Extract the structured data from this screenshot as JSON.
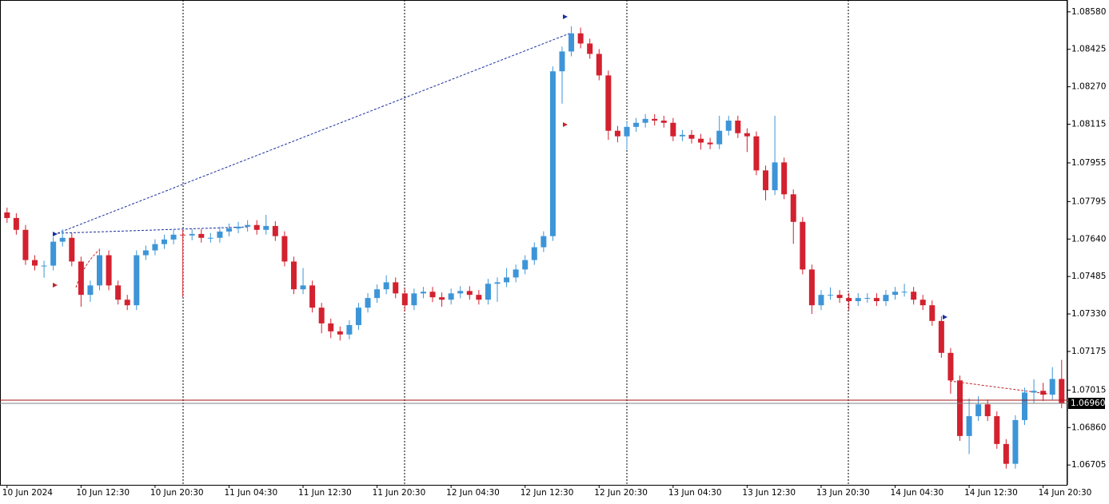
{
  "chart_data": {
    "type": "candlestick",
    "categories": [
      "10 Jun 2024",
      null,
      null,
      null,
      null,
      null,
      null,
      null,
      "10 Jun 12:30",
      null,
      null,
      null,
      null,
      null,
      null,
      null,
      "10 Jun 20:30",
      null,
      null,
      null,
      null,
      null,
      null,
      null,
      "11 Jun 04:30",
      null,
      null,
      null,
      null,
      null,
      null,
      null,
      "11 Jun 12:30",
      null,
      null,
      null,
      null,
      null,
      null,
      null,
      "11 Jun 20:30",
      null,
      null,
      null,
      null,
      null,
      null,
      null,
      "12 Jun 04:30",
      null,
      null,
      null,
      null,
      null,
      null,
      null,
      "12 Jun 12:30",
      null,
      null,
      null,
      null,
      null,
      null,
      null,
      "12 Jun 20:30",
      null,
      null,
      null,
      null,
      null,
      null,
      null,
      "13 Jun 04:30",
      null,
      null,
      null,
      null,
      null,
      null,
      null,
      "13 Jun 12:30",
      null,
      null,
      null,
      null,
      null,
      null,
      null,
      "13 Jun 20:30",
      null,
      null,
      null,
      null,
      null,
      null,
      null,
      "14 Jun 04:30",
      null,
      null,
      null,
      null,
      null,
      null,
      null,
      "14 Jun 12:30",
      null,
      null,
      null,
      null,
      null,
      null,
      null,
      "14 Jun 20:30",
      null,
      null
    ],
    "open": [
      1.0775,
      1.07727,
      1.07678,
      1.07553,
      1.0753,
      1.0753,
      1.07629,
      1.07645,
      1.07547,
      1.07409,
      1.07448,
      1.07573,
      1.07448,
      1.07389,
      1.07366,
      1.07573,
      1.07593,
      1.07619,
      1.07638,
      1.07658,
      1.07655,
      1.07661,
      1.07645,
      1.07645,
      1.07671,
      1.07684,
      1.07691,
      1.07698,
      1.07678,
      1.07694,
      1.07652,
      1.07547,
      1.07432,
      1.07448,
      1.07356,
      1.07291,
      1.07258,
      1.07245,
      1.07284,
      1.07356,
      1.07396,
      1.07432,
      1.07461,
      1.07415,
      1.07366,
      1.07415,
      1.07422,
      1.07399,
      1.07389,
      1.07415,
      1.07425,
      1.07409,
      1.07389,
      1.07455,
      1.07461,
      1.07481,
      1.07514,
      1.07553,
      1.07606,
      1.07652,
      1.08334,
      1.08416,
      1.08491,
      1.08449,
      1.08406,
      1.08317,
      1.08088,
      1.08065,
      1.08104,
      1.08121,
      1.08137,
      1.0813,
      1.08121,
      1.08065,
      1.08071,
      1.08055,
      1.08039,
      1.08032,
      1.08088,
      1.0813,
      1.08078,
      1.08065,
      1.07924,
      1.07842,
      1.07957,
      1.07825,
      1.07711,
      1.07514,
      1.07366,
      1.07409,
      1.07409,
      1.07396,
      1.07383,
      1.07396,
      1.07396,
      1.07383,
      1.07409,
      1.07422,
      1.07422,
      1.07389,
      1.07366,
      1.07301,
      1.07169,
      1.07055,
      1.06825,
      1.06907,
      1.06956,
      1.06907,
      1.06792,
      1.0671,
      1.06891,
      1.07005,
      1.07012,
      1.06996,
      1.07061
    ],
    "high": [
      1.0777,
      1.07747,
      1.07698,
      1.07573,
      1.0755,
      1.07649,
      1.0768,
      1.07665,
      1.07567,
      1.07468,
      1.076,
      1.07593,
      1.07468,
      1.07409,
      1.07593,
      1.07613,
      1.07639,
      1.07658,
      1.07678,
      1.07678,
      1.07681,
      1.07681,
      1.07665,
      1.07691,
      1.07704,
      1.07711,
      1.07718,
      1.07718,
      1.0774,
      1.07714,
      1.07672,
      1.07567,
      1.0752,
      1.07468,
      1.07376,
      1.07311,
      1.07278,
      1.07304,
      1.07376,
      1.07416,
      1.07452,
      1.0749,
      1.07481,
      1.07435,
      1.07435,
      1.07442,
      1.07442,
      1.07419,
      1.07435,
      1.07445,
      1.07445,
      1.07429,
      1.07475,
      1.07481,
      1.0752,
      1.07534,
      1.07573,
      1.07626,
      1.07672,
      1.08354,
      1.08436,
      1.0852,
      1.08515,
      1.08469,
      1.08426,
      1.08337,
      1.08108,
      1.08124,
      1.08141,
      1.08157,
      1.08157,
      1.0815,
      1.08141,
      1.08091,
      1.08091,
      1.08075,
      1.08059,
      1.0815,
      1.0815,
      1.0815,
      1.08098,
      1.08085,
      1.07944,
      1.0815,
      1.07977,
      1.07845,
      1.07731,
      1.07534,
      1.07429,
      1.0744,
      1.07429,
      1.07416,
      1.07416,
      1.07416,
      1.07416,
      1.07429,
      1.07442,
      1.07455,
      1.07442,
      1.07409,
      1.07386,
      1.07321,
      1.07189,
      1.07075,
      1.0698,
      1.0699,
      1.06976,
      1.06927,
      1.06812,
      1.06911,
      1.07025,
      1.0706,
      1.07045,
      1.0711,
      1.0714
    ],
    "low": [
      1.07707,
      1.07658,
      1.07533,
      1.0751,
      1.0748,
      1.0751,
      1.07609,
      1.07527,
      1.0736,
      1.0738,
      1.07428,
      1.07428,
      1.07369,
      1.07346,
      1.07346,
      1.07553,
      1.07573,
      1.07599,
      1.07618,
      1.074,
      1.07635,
      1.07625,
      1.07625,
      1.07625,
      1.07651,
      1.07664,
      1.07671,
      1.07658,
      1.07658,
      1.07632,
      1.07527,
      1.07412,
      1.07412,
      1.07336,
      1.0725,
      1.0723,
      1.0722,
      1.07225,
      1.07264,
      1.07336,
      1.07376,
      1.07412,
      1.07395,
      1.0734,
      1.07346,
      1.07395,
      1.07379,
      1.0736,
      1.07369,
      1.07395,
      1.07389,
      1.07369,
      1.07369,
      1.0738,
      1.07441,
      1.07461,
      1.07494,
      1.07533,
      1.07586,
      1.07632,
      1.082,
      1.08396,
      1.08429,
      1.08386,
      1.08297,
      1.0805,
      1.0804,
      1.0801,
      1.08084,
      1.08101,
      1.0811,
      1.08101,
      1.08045,
      1.08045,
      1.08035,
      1.0801,
      1.08012,
      1.08012,
      1.08068,
      1.08058,
      1.08,
      1.07904,
      1.078,
      1.07822,
      1.07805,
      1.0762,
      1.07494,
      1.0733,
      1.07346,
      1.07389,
      1.07376,
      1.07345,
      1.07363,
      1.07376,
      1.07363,
      1.07363,
      1.07389,
      1.07402,
      1.07369,
      1.07346,
      1.07281,
      1.07149,
      1.07,
      1.06805,
      1.0675,
      1.06887,
      1.06887,
      1.06772,
      1.0669,
      1.0669,
      1.06871,
      1.0696,
      1.0697,
      1.06976,
      1.0694
    ],
    "close": [
      1.07727,
      1.07678,
      1.07553,
      1.0753,
      1.0753,
      1.07629,
      1.07645,
      1.07547,
      1.07409,
      1.07448,
      1.07573,
      1.07448,
      1.07389,
      1.07366,
      1.07573,
      1.07593,
      1.07619,
      1.07638,
      1.07658,
      1.07655,
      1.07661,
      1.07645,
      1.07645,
      1.07671,
      1.07684,
      1.07691,
      1.07698,
      1.07678,
      1.07694,
      1.07652,
      1.07547,
      1.07432,
      1.07448,
      1.07356,
      1.07291,
      1.07258,
      1.07245,
      1.07284,
      1.07356,
      1.07396,
      1.07432,
      1.07461,
      1.07415,
      1.07366,
      1.07415,
      1.07422,
      1.07399,
      1.07389,
      1.07415,
      1.07425,
      1.07409,
      1.07389,
      1.07455,
      1.07461,
      1.07481,
      1.07514,
      1.07553,
      1.07606,
      1.07652,
      1.08334,
      1.08416,
      1.08491,
      1.08449,
      1.08406,
      1.08317,
      1.08088,
      1.08065,
      1.08104,
      1.08121,
      1.08137,
      1.0813,
      1.08121,
      1.08065,
      1.08071,
      1.08055,
      1.08039,
      1.08032,
      1.08088,
      1.0813,
      1.08078,
      1.08065,
      1.07924,
      1.07842,
      1.07957,
      1.07825,
      1.07711,
      1.07514,
      1.07366,
      1.07409,
      1.07409,
      1.07396,
      1.07383,
      1.07396,
      1.07396,
      1.07383,
      1.07409,
      1.07422,
      1.07422,
      1.07389,
      1.07366,
      1.07301,
      1.07169,
      1.07055,
      1.06825,
      1.06907,
      1.06956,
      1.06907,
      1.06792,
      1.0671,
      1.06891,
      1.07005,
      1.07012,
      1.06996,
      1.07061,
      1.0696
    ],
    "up_color": "#3d95d8",
    "down_color": "#d3212f",
    "ylim": [
      1.06623,
      1.08629
    ],
    "yticks": [
      {
        "value": 1.0858,
        "label": "1.08580"
      },
      {
        "value": 1.08425,
        "label": "1.08425"
      },
      {
        "value": 1.0827,
        "label": "1.08270"
      },
      {
        "value": 1.08115,
        "label": "1.08115"
      },
      {
        "value": 1.07955,
        "label": "1.07955"
      },
      {
        "value": 1.07795,
        "label": "1.07795"
      },
      {
        "value": 1.0764,
        "label": "1.07640"
      },
      {
        "value": 1.07485,
        "label": "1.07485"
      },
      {
        "value": 1.0733,
        "label": "1.07330"
      },
      {
        "value": 1.07175,
        "label": "1.07175"
      },
      {
        "value": 1.07015,
        "label": "1.07015"
      },
      {
        "value": 1.0686,
        "label": "1.06860"
      },
      {
        "value": 1.06705,
        "label": "1.06705"
      }
    ],
    "current_price": {
      "value": 1.0696,
      "label": "1.06960"
    }
  }
}
